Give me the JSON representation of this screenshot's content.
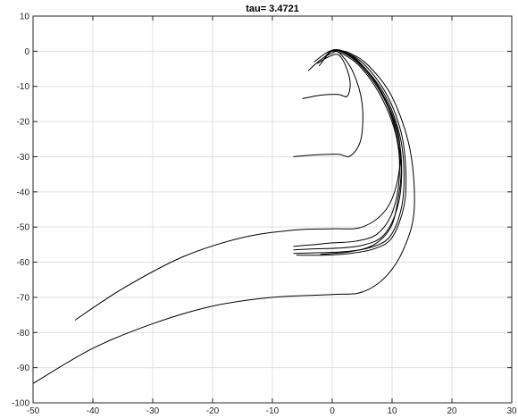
{
  "chart_data": {
    "type": "line",
    "title": "tau= 3.4721",
    "xlabel": "",
    "ylabel": "",
    "xlim": [
      -50,
      30
    ],
    "ylim": [
      -100,
      10
    ],
    "xticks": [
      -50,
      -40,
      -30,
      -20,
      -10,
      0,
      10,
      20,
      30
    ],
    "yticks": [
      10,
      0,
      -10,
      -20,
      -30,
      -40,
      -50,
      -60,
      -70,
      -80,
      -90,
      -100
    ],
    "grid": true,
    "line_color": "#000000",
    "grid_color": "#e0e0e0",
    "series": [
      {
        "values": [
          [
            -50,
            -94.5
          ],
          [
            -40,
            -84.5
          ],
          [
            -30,
            -77.5
          ],
          [
            -20,
            -72.5
          ],
          [
            -10,
            -70
          ],
          [
            0,
            -69.2
          ],
          [
            5,
            -68.5
          ],
          [
            9,
            -64
          ],
          [
            12,
            -56
          ],
          [
            13.7,
            -45
          ],
          [
            13,
            -28
          ],
          [
            10,
            -13
          ],
          [
            6,
            -4
          ],
          [
            3,
            -0.6
          ],
          [
            1,
            0.3
          ],
          [
            0,
            0.3
          ],
          [
            -1,
            -1.5
          ],
          [
            -2.2,
            -4.2
          ]
        ]
      },
      {
        "values": [
          [
            -43,
            -76.5
          ],
          [
            -35,
            -67.5
          ],
          [
            -25,
            -58.5
          ],
          [
            -15,
            -53
          ],
          [
            -6,
            -50.8
          ],
          [
            0,
            -50.5
          ],
          [
            5,
            -50
          ],
          [
            9,
            -45
          ],
          [
            11,
            -36
          ],
          [
            11.2,
            -25
          ],
          [
            9,
            -14
          ],
          [
            5.5,
            -5
          ],
          [
            2.5,
            -1
          ],
          [
            0.5,
            0.3
          ],
          [
            -1,
            -0.5
          ],
          [
            -3,
            -3
          ]
        ]
      },
      {
        "values": [
          [
            -6.5,
            -30
          ],
          [
            -3,
            -29.5
          ],
          [
            1,
            -29.3
          ],
          [
            3,
            -29.8
          ],
          [
            4.8,
            -25
          ],
          [
            5,
            -15
          ],
          [
            3.5,
            -6
          ],
          [
            1.2,
            -0.5
          ],
          [
            0,
            -0.5
          ],
          [
            -2,
            -2.5
          ],
          [
            -4,
            -5.5
          ]
        ]
      },
      {
        "values": [
          [
            -5,
            -13.5
          ],
          [
            -2,
            -12.5
          ],
          [
            1,
            -12.3
          ],
          [
            2.5,
            -12.8
          ],
          [
            3,
            -9
          ],
          [
            2.2,
            -4
          ],
          [
            1,
            -1
          ],
          [
            -0.5,
            -1.5
          ],
          [
            -2.5,
            -3.5
          ]
        ]
      },
      {
        "values": [
          [
            -6.5,
            -55.5
          ],
          [
            -3,
            -55
          ],
          [
            0,
            -54.5
          ],
          [
            4,
            -54
          ],
          [
            7.5,
            -52
          ],
          [
            10,
            -46
          ],
          [
            11.2,
            -36
          ],
          [
            10.8,
            -25
          ],
          [
            8.5,
            -14
          ],
          [
            5,
            -5
          ],
          [
            2,
            -1
          ],
          [
            0,
            0
          ],
          [
            -1.5,
            -2
          ]
        ]
      },
      {
        "values": [
          [
            -6.5,
            -56.5
          ],
          [
            -3,
            -56.2
          ],
          [
            1,
            -56
          ],
          [
            5,
            -55.2
          ],
          [
            8.5,
            -52.5
          ],
          [
            10.8,
            -45
          ],
          [
            11.6,
            -35
          ],
          [
            11,
            -24
          ],
          [
            8.5,
            -13
          ],
          [
            5,
            -4.5
          ],
          [
            2,
            -0.5
          ],
          [
            0,
            0.2
          ],
          [
            -1.2,
            -1.7
          ]
        ]
      },
      {
        "values": [
          [
            -6.5,
            -57.5
          ],
          [
            -2,
            -57.3
          ],
          [
            2,
            -57
          ],
          [
            6,
            -56
          ],
          [
            9.5,
            -53
          ],
          [
            11.5,
            -45
          ],
          [
            12,
            -35
          ],
          [
            11.3,
            -24
          ],
          [
            8.8,
            -12.5
          ],
          [
            5,
            -4
          ],
          [
            1.8,
            -0.2
          ],
          [
            0,
            0.1
          ],
          [
            -1,
            -1.2
          ]
        ]
      },
      {
        "values": [
          [
            -6,
            -58
          ],
          [
            -1,
            -58
          ],
          [
            3,
            -57.5
          ],
          [
            7,
            -56.2
          ],
          [
            10,
            -53
          ],
          [
            12,
            -44
          ],
          [
            12.3,
            -34
          ],
          [
            11.5,
            -23
          ],
          [
            9,
            -12
          ],
          [
            5.2,
            -3.5
          ],
          [
            1.8,
            0
          ],
          [
            0,
            0.3
          ],
          [
            -0.8,
            -1
          ]
        ]
      },
      {
        "values": [
          [
            -2,
            -57.8
          ],
          [
            3,
            -57
          ],
          [
            7,
            -55
          ],
          [
            9.8,
            -50
          ],
          [
            11,
            -42
          ],
          [
            11.5,
            -33
          ],
          [
            10.5,
            -22
          ],
          [
            8,
            -11
          ],
          [
            4.5,
            -3
          ],
          [
            1.5,
            0.2
          ],
          [
            0,
            0
          ]
        ]
      }
    ]
  }
}
